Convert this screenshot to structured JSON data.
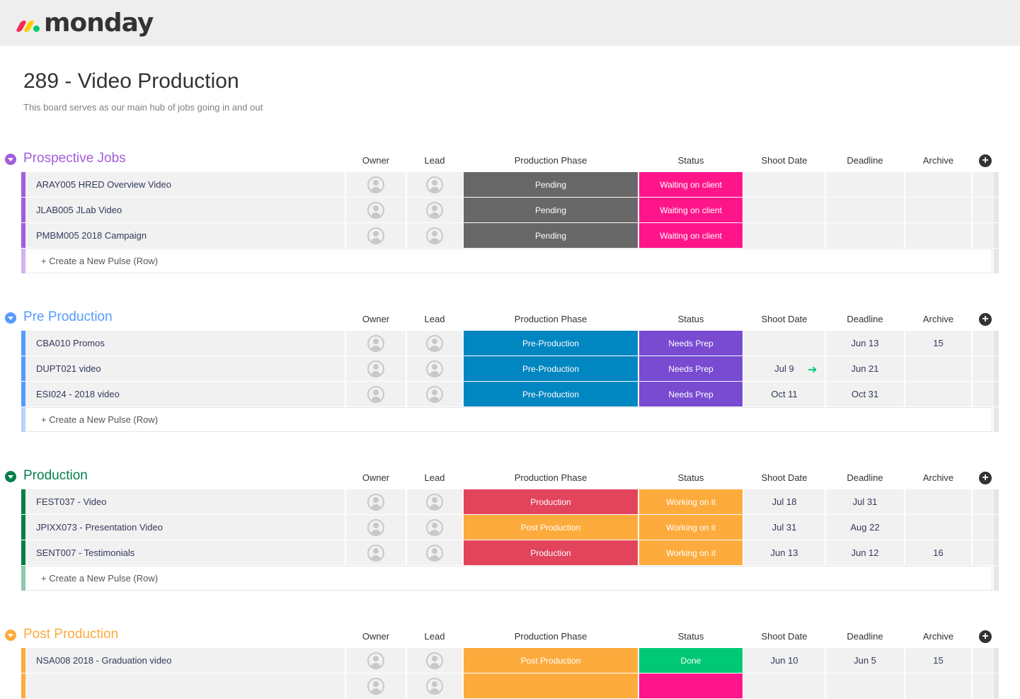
{
  "app": {
    "logo_text": "monday",
    "logo_colors": [
      "#f62b54",
      "#ffcc00",
      "#00ca72"
    ]
  },
  "board": {
    "title": "289 - Video Production",
    "description": "This board serves as our main hub of jobs going in and out"
  },
  "columns": {
    "owner": "Owner",
    "lead": "Lead",
    "phase": "Production Phase",
    "status": "Status",
    "shoot": "Shoot Date",
    "deadline": "Deadline",
    "archive": "Archive",
    "add_icon": "plus-circle-icon"
  },
  "create_label": "+ Create a New Pulse (Row)",
  "colors": {
    "pending": "#676767",
    "waiting": "#ff158a",
    "preproduction": "#0086c0",
    "needs_prep": "#784bd1",
    "production": "#e2445c",
    "post_production": "#fdab3d",
    "working": "#fdab3d",
    "done": "#00c875",
    "shoot_arrow": "#00c875"
  },
  "groups": [
    {
      "title": "Prospective Jobs",
      "color": "#a25ddc",
      "light": "#d3b2ef",
      "rows": [
        {
          "name": "ARAY005 HRED Overview Video",
          "phase": "Pending",
          "phase_color": "#676767",
          "status": "Waiting on client",
          "status_color": "#ff158a",
          "shoot": "",
          "deadline": "",
          "archive": ""
        },
        {
          "name": "JLAB005 JLab Video",
          "phase": "Pending",
          "phase_color": "#676767",
          "status": "Waiting on client",
          "status_color": "#ff158a",
          "shoot": "",
          "deadline": "",
          "archive": ""
        },
        {
          "name": "PMBM005 2018 Campaign",
          "phase": "Pending",
          "phase_color": "#676767",
          "status": "Waiting on client",
          "status_color": "#ff158a",
          "shoot": "",
          "deadline": "",
          "archive": ""
        }
      ]
    },
    {
      "title": "Pre Production",
      "color": "#579bfc",
      "light": "#b8d4fd",
      "rows": [
        {
          "name": "CBA010 Promos",
          "phase": "Pre-Production",
          "phase_color": "#0086c0",
          "status": "Needs Prep",
          "status_color": "#784bd1",
          "shoot": "",
          "deadline": "Jun 13",
          "archive": "15"
        },
        {
          "name": "DUPT021 video",
          "phase": "Pre-Production",
          "phase_color": "#0086c0",
          "status": "Needs Prep",
          "status_color": "#784bd1",
          "shoot": "Jul 9",
          "shoot_icon": "arrow-right-icon",
          "deadline": "Jun 21",
          "archive": ""
        },
        {
          "name": "ESI024 - 2018 video",
          "phase": "Pre-Production",
          "phase_color": "#0086c0",
          "status": "Needs Prep",
          "status_color": "#784bd1",
          "shoot": "Oct 11",
          "deadline": "Oct 31",
          "archive": ""
        }
      ]
    },
    {
      "title": "Production",
      "color": "#037f4c",
      "light": "#8fc7ad",
      "rows": [
        {
          "name": "FEST037 - Video",
          "phase": "Production",
          "phase_color": "#e2445c",
          "status": "Working on it",
          "status_color": "#fdab3d",
          "shoot": "Jul 18",
          "deadline": "Jul 31",
          "archive": ""
        },
        {
          "name": "JPIXX073 - Presentation Video",
          "phase": "Post Production",
          "phase_color": "#fdab3d",
          "status": "Working on it",
          "status_color": "#fdab3d",
          "shoot": "Jul 31",
          "deadline": "Aug 22",
          "archive": ""
        },
        {
          "name": "SENT007 - Testimonials",
          "phase": "Production",
          "phase_color": "#e2445c",
          "status": "Working on it",
          "status_color": "#fdab3d",
          "shoot": "Jun 13",
          "deadline": "Jun 12",
          "archive": "16"
        }
      ]
    },
    {
      "title": "Post Production",
      "color": "#fdab3d",
      "light": "#fed9a6",
      "rows": [
        {
          "name": "NSA008 2018 - Graduation video",
          "phase": "Post Production",
          "phase_color": "#fdab3d",
          "status": "Done",
          "status_color": "#00c875",
          "shoot": "Jun 10",
          "deadline": "Jun 5",
          "archive": "15"
        },
        {
          "name": "",
          "phase": "",
          "phase_color": "#fdab3d",
          "status": "",
          "status_color": "#ff158a",
          "shoot": "",
          "deadline": "",
          "archive": ""
        }
      ]
    }
  ]
}
